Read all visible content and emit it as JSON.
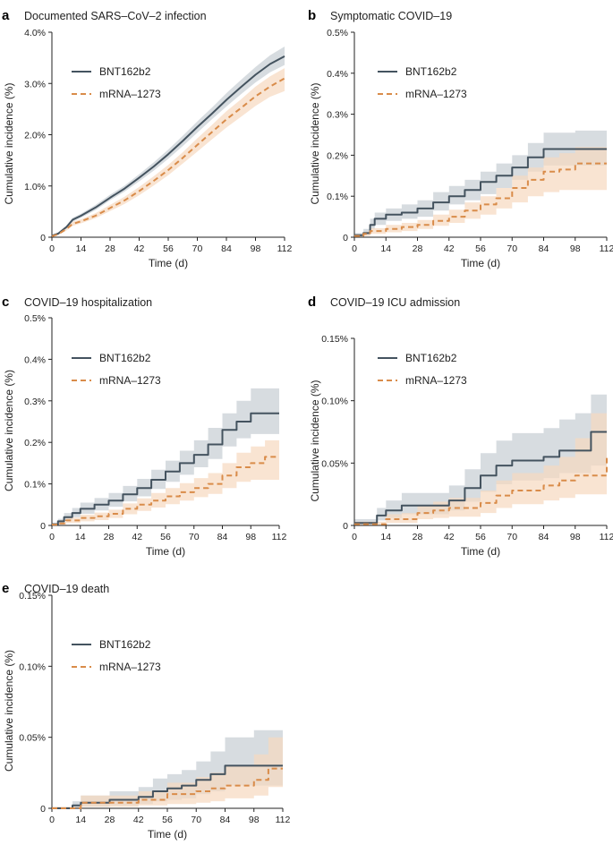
{
  "colors": {
    "bnt_line": "#44535f",
    "bnt_band": "#c9d0d5",
    "mrna_line": "#d98c4a",
    "mrna_band": "#f6d9bf"
  },
  "chart_data": [
    {
      "panel": "a",
      "type": "line",
      "title": "Documented SARS–CoV–2 infection",
      "xlabel": "Time (d)",
      "ylabel": "Cumulative incidence (%)",
      "xticks": [
        0,
        14,
        28,
        42,
        56,
        70,
        84,
        98,
        112
      ],
      "xtick_labels": [
        "0",
        "14",
        "28",
        "42",
        "56",
        "70",
        "84",
        "98",
        "112"
      ],
      "xlim": [
        0,
        112
      ],
      "ylim": [
        0,
        4.0
      ],
      "yticks": [
        0,
        1.0,
        2.0,
        3.0,
        4.0
      ],
      "ytick_labels": [
        "0",
        "1.0%",
        "2.0%",
        "3.0%",
        "4.0%"
      ],
      "legend": [
        "BNT162b2",
        "mRNA–1273"
      ],
      "step": false,
      "series": [
        {
          "name": "BNT162b2",
          "x": [
            0,
            3,
            7,
            10,
            14,
            21,
            28,
            35,
            42,
            49,
            56,
            63,
            70,
            77,
            84,
            91,
            98,
            105,
            112
          ],
          "y": [
            0.03,
            0.07,
            0.2,
            0.34,
            0.42,
            0.58,
            0.77,
            0.95,
            1.16,
            1.38,
            1.62,
            1.88,
            2.15,
            2.41,
            2.68,
            2.93,
            3.17,
            3.38,
            3.53
          ],
          "lower": [
            0.02,
            0.05,
            0.17,
            0.3,
            0.38,
            0.53,
            0.72,
            0.89,
            1.09,
            1.3,
            1.53,
            1.78,
            2.04,
            2.3,
            2.55,
            2.79,
            3.02,
            3.22,
            3.36
          ],
          "upper": [
            0.04,
            0.09,
            0.23,
            0.38,
            0.46,
            0.63,
            0.83,
            1.01,
            1.23,
            1.46,
            1.71,
            1.98,
            2.26,
            2.53,
            2.81,
            3.07,
            3.32,
            3.55,
            3.72
          ]
        },
        {
          "name": "mRNA–1273",
          "x": [
            0,
            3,
            7,
            10,
            14,
            21,
            28,
            35,
            42,
            49,
            56,
            63,
            70,
            77,
            84,
            91,
            98,
            105,
            112
          ],
          "y": [
            0.02,
            0.06,
            0.16,
            0.26,
            0.31,
            0.42,
            0.57,
            0.72,
            0.9,
            1.1,
            1.31,
            1.55,
            1.8,
            2.05,
            2.3,
            2.52,
            2.75,
            2.94,
            3.1
          ],
          "lower": [
            0.01,
            0.04,
            0.13,
            0.22,
            0.27,
            0.37,
            0.51,
            0.65,
            0.82,
            1.01,
            1.21,
            1.44,
            1.67,
            1.91,
            2.14,
            2.35,
            2.56,
            2.74,
            2.85
          ],
          "upper": [
            0.03,
            0.08,
            0.19,
            0.3,
            0.35,
            0.47,
            0.63,
            0.79,
            0.98,
            1.19,
            1.41,
            1.66,
            1.93,
            2.19,
            2.46,
            2.69,
            2.94,
            3.14,
            3.3
          ]
        }
      ]
    },
    {
      "panel": "b",
      "type": "line",
      "title": "Symptomatic COVID–19",
      "xlabel": "Time (d)",
      "ylabel": "Cumulative incidence (%)",
      "xticks": [
        0,
        14,
        28,
        42,
        56,
        70,
        84,
        98,
        112
      ],
      "xtick_labels": [
        "0",
        "14",
        "28",
        "42",
        "56",
        "70",
        "84",
        "98",
        "112"
      ],
      "xlim": [
        0,
        112
      ],
      "ylim": [
        0,
        0.5
      ],
      "yticks": [
        0,
        0.1,
        0.2,
        0.3,
        0.4,
        0.5
      ],
      "ytick_labels": [
        "0",
        "0.1%",
        "0.2%",
        "0.3%",
        "0.4%",
        "0.5%"
      ],
      "legend": [
        "BNT162b2",
        "mRNA–1273"
      ],
      "step": true,
      "series": [
        {
          "name": "BNT162b2",
          "x": [
            0,
            4,
            7,
            9,
            14,
            21,
            28,
            35,
            42,
            49,
            56,
            63,
            70,
            77,
            84,
            98,
            112
          ],
          "y": [
            0.005,
            0.01,
            0.03,
            0.045,
            0.055,
            0.06,
            0.07,
            0.085,
            0.1,
            0.115,
            0.135,
            0.15,
            0.17,
            0.195,
            0.215,
            0.215,
            0.215
          ],
          "lower": [
            0.002,
            0.005,
            0.02,
            0.03,
            0.04,
            0.045,
            0.05,
            0.065,
            0.08,
            0.09,
            0.105,
            0.12,
            0.14,
            0.16,
            0.175,
            0.175,
            0.175
          ],
          "upper": [
            0.01,
            0.02,
            0.045,
            0.06,
            0.07,
            0.08,
            0.09,
            0.11,
            0.125,
            0.14,
            0.16,
            0.18,
            0.2,
            0.23,
            0.255,
            0.26,
            0.275
          ]
        },
        {
          "name": "mRNA–1273",
          "x": [
            0,
            4,
            7,
            14,
            21,
            28,
            35,
            42,
            49,
            56,
            63,
            70,
            77,
            84,
            91,
            98,
            112
          ],
          "y": [
            0.003,
            0.008,
            0.015,
            0.02,
            0.025,
            0.03,
            0.04,
            0.05,
            0.065,
            0.08,
            0.095,
            0.12,
            0.14,
            0.16,
            0.165,
            0.18,
            0.18
          ],
          "lower": [
            0.001,
            0.003,
            0.008,
            0.012,
            0.015,
            0.02,
            0.028,
            0.035,
            0.045,
            0.055,
            0.07,
            0.085,
            0.1,
            0.11,
            0.115,
            0.115,
            0.11
          ],
          "upper": [
            0.006,
            0.013,
            0.022,
            0.03,
            0.035,
            0.042,
            0.055,
            0.067,
            0.085,
            0.1,
            0.12,
            0.15,
            0.17,
            0.195,
            0.205,
            0.22,
            0.22
          ]
        }
      ]
    },
    {
      "panel": "c",
      "type": "line",
      "title": "COVID–19 hospitalization",
      "xlabel": "Time (d)",
      "ylabel": "Cumulative incidence (%)",
      "xticks": [
        0,
        14,
        28,
        42,
        56,
        70,
        84,
        98,
        112
      ],
      "xtick_labels": [
        "0",
        "14",
        "28",
        "42",
        "56",
        "70",
        "84",
        "98",
        "112"
      ],
      "xlim": [
        0,
        112
      ],
      "ylim": [
        0,
        0.5
      ],
      "yticks": [
        0,
        0.1,
        0.2,
        0.3,
        0.4,
        0.5
      ],
      "ytick_labels": [
        "0",
        "0.1%",
        "0.2%",
        "0.3%",
        "0.4%",
        "0.5%"
      ],
      "legend": [
        "BNT162b2",
        "mRNA–1273"
      ],
      "step": true,
      "series": [
        {
          "name": "BNT162b2",
          "x": [
            0,
            3,
            6,
            10,
            14,
            21,
            28,
            35,
            42,
            49,
            56,
            63,
            70,
            77,
            84,
            91,
            98,
            112
          ],
          "y": [
            0.003,
            0.01,
            0.02,
            0.03,
            0.04,
            0.05,
            0.06,
            0.075,
            0.09,
            0.11,
            0.13,
            0.15,
            0.17,
            0.195,
            0.23,
            0.25,
            0.27,
            0.27
          ],
          "lower": [
            0.001,
            0.005,
            0.012,
            0.02,
            0.028,
            0.036,
            0.045,
            0.058,
            0.07,
            0.088,
            0.105,
            0.122,
            0.14,
            0.16,
            0.19,
            0.21,
            0.22,
            0.22
          ],
          "upper": [
            0.006,
            0.016,
            0.03,
            0.042,
            0.055,
            0.066,
            0.078,
            0.095,
            0.112,
            0.134,
            0.156,
            0.18,
            0.205,
            0.235,
            0.27,
            0.3,
            0.33,
            0.33
          ]
        },
        {
          "name": "mRNA–1273",
          "x": [
            0,
            4,
            7,
            14,
            21,
            28,
            35,
            42,
            49,
            56,
            63,
            70,
            77,
            84,
            91,
            98,
            105,
            112
          ],
          "y": [
            0.002,
            0.005,
            0.012,
            0.018,
            0.022,
            0.028,
            0.04,
            0.05,
            0.06,
            0.07,
            0.08,
            0.09,
            0.1,
            0.12,
            0.14,
            0.15,
            0.165,
            0.165
          ],
          "lower": [
            0.001,
            0.002,
            0.006,
            0.01,
            0.013,
            0.018,
            0.027,
            0.035,
            0.043,
            0.051,
            0.06,
            0.068,
            0.076,
            0.09,
            0.105,
            0.11,
            0.11,
            0.105
          ],
          "upper": [
            0.004,
            0.009,
            0.019,
            0.026,
            0.031,
            0.038,
            0.053,
            0.065,
            0.078,
            0.09,
            0.102,
            0.114,
            0.126,
            0.15,
            0.175,
            0.19,
            0.205,
            0.205
          ]
        }
      ]
    },
    {
      "panel": "d",
      "type": "line",
      "title": "COVID–19 ICU admission",
      "xlabel": "Time (d)",
      "ylabel": "Cumulative incidence (%)",
      "xticks": [
        0,
        14,
        28,
        42,
        56,
        70,
        84,
        98,
        112
      ],
      "xtick_labels": [
        "0",
        "14",
        "28",
        "42",
        "56",
        "70",
        "84",
        "98",
        "112"
      ],
      "xlim": [
        0,
        112
      ],
      "ylim": [
        0,
        0.15
      ],
      "yticks": [
        0,
        0.05,
        0.1,
        0.15
      ],
      "ytick_labels": [
        "0",
        "0.05%",
        "0.10%",
        "0.15%"
      ],
      "legend": [
        "BNT162b2",
        "mRNA–1273"
      ],
      "step": true,
      "series": [
        {
          "name": "BNT162b2",
          "x": [
            0,
            7,
            10,
            14,
            21,
            28,
            35,
            42,
            49,
            56,
            63,
            70,
            77,
            84,
            91,
            98,
            105,
            112
          ],
          "y": [
            0.002,
            0.002,
            0.008,
            0.012,
            0.016,
            0.016,
            0.016,
            0.02,
            0.03,
            0.04,
            0.048,
            0.052,
            0.052,
            0.055,
            0.06,
            0.06,
            0.075,
            0.075
          ],
          "lower": [
            0.0005,
            0.0005,
            0.004,
            0.006,
            0.009,
            0.009,
            0.009,
            0.012,
            0.019,
            0.027,
            0.033,
            0.036,
            0.036,
            0.038,
            0.042,
            0.042,
            0.048,
            0.048
          ],
          "upper": [
            0.005,
            0.005,
            0.014,
            0.02,
            0.026,
            0.026,
            0.026,
            0.032,
            0.045,
            0.058,
            0.068,
            0.074,
            0.074,
            0.078,
            0.085,
            0.09,
            0.105,
            0.105
          ]
        },
        {
          "name": "mRNA–1273",
          "x": [
            0,
            7,
            14,
            21,
            28,
            35,
            42,
            49,
            56,
            63,
            70,
            77,
            84,
            91,
            98,
            105,
            112
          ],
          "y": [
            0.001,
            0.001,
            0.005,
            0.005,
            0.01,
            0.012,
            0.014,
            0.014,
            0.018,
            0.024,
            0.028,
            0.028,
            0.032,
            0.036,
            0.04,
            0.04,
            0.055
          ],
          "lower": [
            0.0,
            0.0,
            0.002,
            0.002,
            0.005,
            0.006,
            0.007,
            0.007,
            0.01,
            0.014,
            0.017,
            0.017,
            0.02,
            0.022,
            0.025,
            0.025,
            0.028
          ],
          "upper": [
            0.003,
            0.003,
            0.009,
            0.01,
            0.016,
            0.019,
            0.022,
            0.022,
            0.028,
            0.036,
            0.042,
            0.042,
            0.048,
            0.055,
            0.07,
            0.09,
            0.1
          ]
        }
      ]
    },
    {
      "panel": "e",
      "type": "line",
      "title": "COVID–19 death",
      "xlabel": "Time (d)",
      "ylabel": "Cumulative incidence (%)",
      "xticks": [
        0,
        14,
        28,
        42,
        56,
        70,
        84,
        98,
        112
      ],
      "xtick_labels": [
        "0",
        "14",
        "28",
        "42",
        "56",
        "70",
        "84",
        "98",
        "112"
      ],
      "xlim": [
        0,
        112
      ],
      "ylim": [
        0,
        0.15
      ],
      "yticks": [
        0,
        0.05,
        0.1,
        0.15
      ],
      "ytick_labels": [
        "0",
        "0.05%",
        "0.10%",
        "0.15%"
      ],
      "legend": [
        "BNT162b2",
        "mRNA–1273"
      ],
      "step": true,
      "series": [
        {
          "name": "BNT162b2",
          "x": [
            0,
            10,
            14,
            28,
            42,
            49,
            56,
            63,
            70,
            77,
            84,
            98,
            112
          ],
          "y": [
            0.0,
            0.002,
            0.004,
            0.006,
            0.008,
            0.012,
            0.014,
            0.016,
            0.02,
            0.024,
            0.03,
            0.03,
            0.03
          ],
          "lower": [
            0.0,
            0.0,
            0.001,
            0.002,
            0.003,
            0.005,
            0.006,
            0.007,
            0.01,
            0.012,
            0.016,
            0.016,
            0.016
          ],
          "upper": [
            0.001,
            0.005,
            0.009,
            0.012,
            0.015,
            0.021,
            0.024,
            0.027,
            0.033,
            0.04,
            0.05,
            0.055,
            0.056
          ]
        },
        {
          "name": "mRNA–1273",
          "x": [
            0,
            14,
            28,
            42,
            56,
            70,
            77,
            84,
            98,
            105,
            112
          ],
          "y": [
            0.0,
            0.004,
            0.004,
            0.006,
            0.01,
            0.012,
            0.014,
            0.016,
            0.02,
            0.028,
            0.028
          ],
          "lower": [
            0.0,
            0.001,
            0.001,
            0.002,
            0.003,
            0.004,
            0.005,
            0.007,
            0.009,
            0.015,
            0.015
          ],
          "upper": [
            0.001,
            0.009,
            0.009,
            0.012,
            0.018,
            0.022,
            0.025,
            0.03,
            0.038,
            0.05,
            0.05
          ]
        }
      ]
    }
  ]
}
